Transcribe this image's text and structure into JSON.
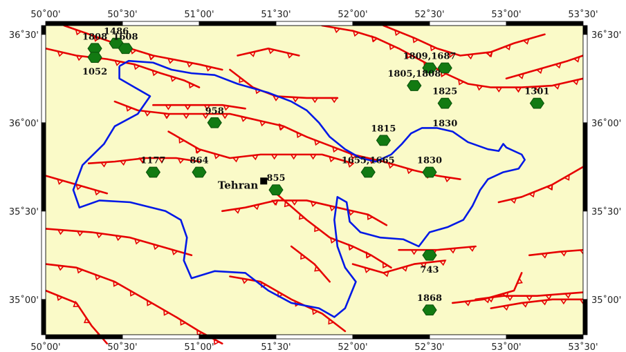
{
  "map": {
    "colors": {
      "land": "#fafac8",
      "fault": "#e60000",
      "lake": "#0018e6",
      "quake_fill": "#127a12",
      "quake_stroke": "#0a500a",
      "frame_dark": "#000000",
      "frame_light": "#ffffff"
    },
    "lon_ticks": [
      50.0,
      50.5,
      51.0,
      51.5,
      52.0,
      52.5,
      53.0,
      53.5
    ],
    "lat_ticks": [
      35.0,
      35.5,
      36.0,
      36.5
    ],
    "lon_labels": [
      "50˚00'",
      "50˚30'",
      "51˚00'",
      "51˚30'",
      "52˚00'",
      "52˚30'",
      "53˚00'",
      "53˚30'"
    ],
    "lat_labels": [
      "35˚00'",
      "35˚30'",
      "36˚00'",
      "36˚30'"
    ],
    "city": {
      "name": "Tehran",
      "lon": 51.42,
      "lat": 35.67
    },
    "earthquakes": [
      {
        "label": "1808",
        "lon": 50.32,
        "lat": 36.42
      },
      {
        "label": "1052",
        "lon": 50.32,
        "lat": 36.37
      },
      {
        "label": "1486",
        "lon": 50.46,
        "lat": 36.45
      },
      {
        "label": "1608",
        "lon": 50.52,
        "lat": 36.42
      },
      {
        "label": "1809,1687",
        "lon": 52.5,
        "lat": 36.31
      },
      {
        "label": "",
        "lon": 52.6,
        "lat": 36.31
      },
      {
        "label": "1805,1808",
        "lon": 52.4,
        "lat": 36.21
      },
      {
        "label": "1825",
        "lon": 52.6,
        "lat": 36.11
      },
      {
        "label": "1301",
        "lon": 53.2,
        "lat": 36.11
      },
      {
        "label": "958",
        "lon": 51.1,
        "lat": 36.0
      },
      {
        "label": "1815",
        "lon": 52.2,
        "lat": 35.9
      },
      {
        "label": "1830",
        "lon": 52.5,
        "lat": 35.72
      },
      {
        "label": "1655,1665",
        "lon": 52.1,
        "lat": 35.72
      },
      {
        "label": "1177",
        "lon": 50.7,
        "lat": 35.72
      },
      {
        "label": "864",
        "lon": 51.0,
        "lat": 35.72
      },
      {
        "label": "855",
        "lon": 51.5,
        "lat": 35.62
      },
      {
        "label": "743",
        "lon": 52.5,
        "lat": 35.25
      },
      {
        "label": "1868",
        "lon": 52.5,
        "lat": 34.94
      }
    ],
    "extra_labels": [
      {
        "text": "1830",
        "lon": 52.6,
        "lat": 35.98
      }
    ],
    "lake_outline": [
      [
        50.48,
        36.32
      ],
      [
        50.54,
        36.35
      ],
      [
        50.7,
        36.34
      ],
      [
        50.82,
        36.3
      ],
      [
        50.95,
        36.28
      ],
      [
        51.1,
        36.27
      ],
      [
        51.25,
        36.22
      ],
      [
        51.45,
        36.17
      ],
      [
        51.6,
        36.12
      ],
      [
        51.7,
        36.07
      ],
      [
        51.78,
        36.0
      ],
      [
        51.85,
        35.92
      ],
      [
        51.95,
        35.85
      ],
      [
        52.05,
        35.8
      ],
      [
        52.15,
        35.78
      ],
      [
        52.25,
        35.82
      ],
      [
        52.32,
        35.88
      ],
      [
        52.38,
        35.94
      ],
      [
        52.45,
        35.97
      ],
      [
        52.55,
        35.97
      ],
      [
        52.65,
        35.95
      ],
      [
        52.75,
        35.89
      ],
      [
        52.88,
        35.85
      ],
      [
        52.95,
        35.84
      ],
      [
        52.98,
        35.88
      ],
      [
        53.0,
        35.86
      ],
      [
        53.1,
        35.82
      ],
      [
        53.12,
        35.79
      ],
      [
        53.08,
        35.74
      ],
      [
        52.98,
        35.72
      ],
      [
        52.88,
        35.68
      ],
      [
        52.83,
        35.62
      ],
      [
        52.78,
        35.53
      ],
      [
        52.72,
        35.45
      ],
      [
        52.62,
        35.41
      ],
      [
        52.5,
        35.38
      ],
      [
        52.43,
        35.3
      ],
      [
        52.33,
        35.34
      ],
      [
        52.18,
        35.35
      ],
      [
        52.05,
        35.38
      ],
      [
        51.98,
        35.44
      ],
      [
        51.96,
        35.55
      ],
      [
        51.9,
        35.58
      ],
      [
        51.88,
        35.45
      ],
      [
        51.9,
        35.3
      ],
      [
        51.95,
        35.18
      ],
      [
        52.02,
        35.1
      ],
      [
        51.95,
        34.95
      ],
      [
        51.88,
        34.9
      ],
      [
        51.78,
        34.95
      ],
      [
        51.6,
        34.98
      ],
      [
        51.45,
        35.05
      ],
      [
        51.3,
        35.15
      ],
      [
        51.1,
        35.16
      ],
      [
        50.95,
        35.12
      ],
      [
        50.9,
        35.22
      ],
      [
        50.92,
        35.35
      ],
      [
        50.88,
        35.45
      ],
      [
        50.78,
        35.5
      ],
      [
        50.55,
        35.55
      ],
      [
        50.35,
        35.56
      ],
      [
        50.22,
        35.52
      ],
      [
        50.18,
        35.62
      ],
      [
        50.24,
        35.76
      ],
      [
        50.38,
        35.88
      ],
      [
        50.45,
        35.98
      ],
      [
        50.6,
        36.05
      ],
      [
        50.68,
        36.15
      ],
      [
        50.58,
        36.2
      ],
      [
        50.48,
        36.25
      ],
      [
        50.48,
        36.32
      ]
    ],
    "faults": [
      [
        [
          50.12,
          36.55
        ],
        [
          50.35,
          36.48
        ],
        [
          50.55,
          36.42
        ],
        [
          50.7,
          36.38
        ],
        [
          50.88,
          36.35
        ],
        [
          51.0,
          36.33
        ],
        [
          51.15,
          36.3
        ]
      ],
      [
        [
          50.0,
          36.42
        ],
        [
          50.2,
          36.38
        ],
        [
          50.4,
          36.36
        ],
        [
          50.58,
          36.33
        ],
        [
          50.75,
          36.28
        ],
        [
          50.9,
          36.24
        ],
        [
          51.0,
          36.2
        ]
      ],
      [
        [
          51.2,
          36.3
        ],
        [
          51.35,
          36.2
        ],
        [
          51.5,
          36.15
        ],
        [
          51.7,
          36.14
        ],
        [
          51.9,
          36.14
        ]
      ],
      [
        [
          51.25,
          36.38
        ],
        [
          51.45,
          36.42
        ],
        [
          51.65,
          36.38
        ]
      ],
      [
        [
          51.8,
          36.55
        ],
        [
          52.0,
          36.52
        ],
        [
          52.15,
          36.48
        ],
        [
          52.3,
          36.42
        ],
        [
          52.45,
          36.35
        ],
        [
          52.6,
          36.28
        ],
        [
          52.75,
          36.22
        ],
        [
          52.9,
          36.2
        ],
        [
          53.1,
          36.2
        ],
        [
          53.3,
          36.21
        ],
        [
          53.5,
          36.25
        ]
      ],
      [
        [
          52.2,
          36.55
        ],
        [
          52.4,
          36.48
        ],
        [
          52.55,
          36.42
        ],
        [
          52.7,
          36.38
        ],
        [
          52.9,
          36.4
        ],
        [
          53.05,
          36.45
        ],
        [
          53.25,
          36.5
        ]
      ],
      [
        [
          53.0,
          36.25
        ],
        [
          53.2,
          36.3
        ],
        [
          53.4,
          36.35
        ],
        [
          53.5,
          36.38
        ]
      ],
      [
        [
          50.45,
          36.12
        ],
        [
          50.6,
          36.07
        ],
        [
          50.8,
          36.05
        ],
        [
          51.0,
          36.05
        ],
        [
          51.2,
          36.05
        ],
        [
          51.35,
          36.02
        ],
        [
          51.55,
          35.98
        ],
        [
          51.7,
          35.92
        ],
        [
          51.85,
          35.87
        ],
        [
          52.0,
          35.82
        ],
        [
          52.2,
          35.78
        ],
        [
          52.4,
          35.73
        ],
        [
          52.55,
          35.7
        ],
        [
          52.7,
          35.68
        ]
      ],
      [
        [
          50.7,
          36.1
        ],
        [
          50.95,
          36.1
        ],
        [
          51.15,
          36.1
        ],
        [
          51.3,
          36.08
        ]
      ],
      [
        [
          50.8,
          35.95
        ],
        [
          51.0,
          35.85
        ],
        [
          51.2,
          35.8
        ],
        [
          51.4,
          35.82
        ],
        [
          51.6,
          35.82
        ],
        [
          51.8,
          35.82
        ],
        [
          52.0,
          35.77
        ]
      ],
      [
        [
          50.28,
          35.77
        ],
        [
          50.45,
          35.78
        ],
        [
          50.65,
          35.8
        ],
        [
          50.85,
          35.8
        ],
        [
          51.0,
          35.78
        ]
      ],
      [
        [
          50.0,
          35.7
        ],
        [
          50.2,
          35.65
        ],
        [
          50.4,
          35.6
        ]
      ],
      [
        [
          51.15,
          35.5
        ],
        [
          51.3,
          35.52
        ],
        [
          51.5,
          35.56
        ],
        [
          51.7,
          35.56
        ],
        [
          51.9,
          35.52
        ],
        [
          52.1,
          35.48
        ],
        [
          52.22,
          35.42
        ]
      ],
      [
        [
          51.6,
          35.3
        ],
        [
          51.75,
          35.2
        ],
        [
          51.85,
          35.1
        ]
      ],
      [
        [
          51.5,
          35.6
        ],
        [
          51.7,
          35.45
        ],
        [
          51.85,
          35.35
        ],
        [
          52.0,
          35.3
        ],
        [
          52.12,
          35.25
        ],
        [
          52.25,
          35.18
        ]
      ],
      [
        [
          52.0,
          35.2
        ],
        [
          52.2,
          35.15
        ],
        [
          52.4,
          35.2
        ],
        [
          52.6,
          35.22
        ]
      ],
      [
        [
          50.0,
          35.4
        ],
        [
          50.3,
          35.38
        ],
        [
          50.55,
          35.35
        ],
        [
          50.75,
          35.3
        ],
        [
          50.95,
          35.25
        ]
      ],
      [
        [
          50.0,
          35.2
        ],
        [
          50.2,
          35.18
        ],
        [
          50.45,
          35.1
        ],
        [
          50.65,
          35.0
        ],
        [
          50.85,
          34.9
        ],
        [
          51.0,
          34.82
        ],
        [
          51.15,
          34.75
        ]
      ],
      [
        [
          50.0,
          35.05
        ],
        [
          50.2,
          34.98
        ],
        [
          50.3,
          34.85
        ],
        [
          50.4,
          34.75
        ]
      ],
      [
        [
          51.2,
          35.13
        ],
        [
          51.4,
          35.1
        ],
        [
          51.6,
          35.0
        ],
        [
          51.8,
          34.92
        ],
        [
          51.95,
          34.82
        ]
      ],
      [
        [
          52.8,
          35.0
        ],
        [
          52.98,
          35.02
        ],
        [
          53.2,
          35.02
        ],
        [
          53.5,
          35.04
        ]
      ],
      [
        [
          52.65,
          34.98
        ],
        [
          52.85,
          35.0
        ],
        [
          53.05,
          35.05
        ],
        [
          53.1,
          35.15
        ]
      ],
      [
        [
          52.9,
          34.95
        ],
        [
          53.1,
          34.98
        ],
        [
          53.3,
          35.0
        ],
        [
          53.5,
          35.0
        ]
      ],
      [
        [
          53.15,
          35.25
        ],
        [
          53.35,
          35.27
        ],
        [
          53.5,
          35.28
        ]
      ],
      [
        [
          52.95,
          35.55
        ],
        [
          53.1,
          35.58
        ],
        [
          53.3,
          35.65
        ],
        [
          53.5,
          35.75
        ]
      ],
      [
        [
          52.3,
          35.28
        ],
        [
          52.55,
          35.28
        ],
        [
          52.8,
          35.3
        ]
      ]
    ]
  }
}
